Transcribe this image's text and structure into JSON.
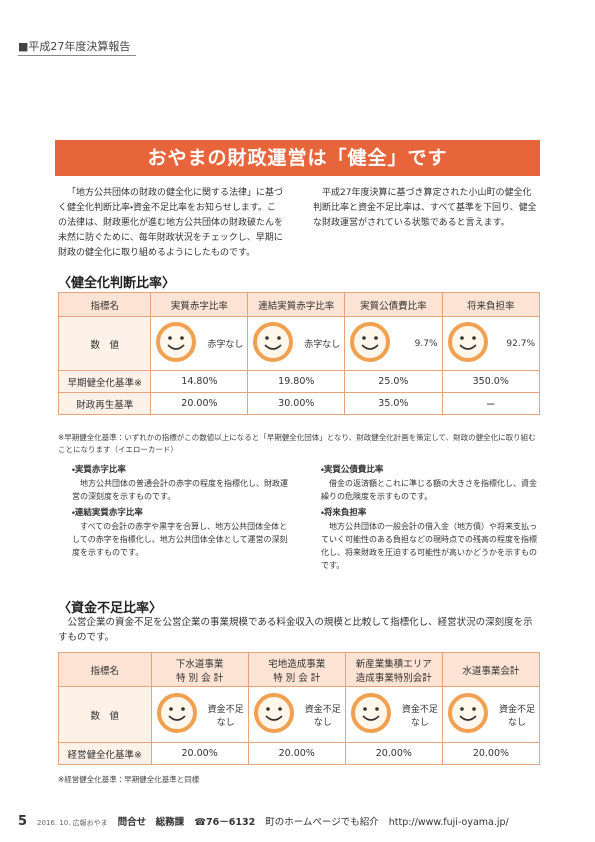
{
  "header": {
    "tag": "■平成27年度決算報告"
  },
  "title": "おやまの財政運営は「健全」です",
  "intro": [
    "「地方公共団体の財政の健全化に関する法律」に基づく健全化判断比率・資金不足比率をお知らせします。この法律は、財政悪化が進む地方公共団体の財政破たんを未然に防ぐために、毎年財政状況をチェックし、早期に財政の健全化に取り組めるようにしたものです。",
    "平成27年度決算に基づき算定された小山町の健全化判断比率と資金不足比率は、すべて基準を下回り、健全な財政運営がされている状態であると言えます。"
  ],
  "section1": {
    "heading": "〈健全化判断比率〉",
    "table": {
      "header": [
        "指標名",
        "実質赤字比率",
        "連結実質赤字比率",
        "実質公債費比率",
        "将来負担率"
      ],
      "rows": [
        [
          "数　値",
          "赤字なし",
          "赤字なし",
          "9.7%",
          "92.7%"
        ],
        [
          "早期健全化基準※",
          "14.80%",
          "19.80%",
          "25.0%",
          "350.0%"
        ],
        [
          "財政再生基準",
          "20.00%",
          "30.00%",
          "35.0%",
          "ー"
        ]
      ]
    },
    "note": "※早期健全化基準：いずれかの指標がこの数値以上になると「早期健全化団体」となり、財政健全化計画を策定して、財政の健全化に取り組むことになります（イエローカード）",
    "definitions": [
      {
        "term": "・実質赤字比率",
        "text": "地方公共団体の普通会計の赤字の程度を指標化し、財政運営の深刻度を示すものです。"
      },
      {
        "term": "・連結実質赤字比率",
        "text": "すべての会計の赤字や黒字を合算し、地方公共団体全体としての赤字を指標化し、地方公共団体全体として運営の深刻度を示すものです。"
      },
      {
        "term": "・実質公債費比率",
        "text": "借金の返済額とこれに準じる額の大きさを指標化し、資金繰りの危険度を示すものです。"
      },
      {
        "term": "・将来負担率",
        "text": "地方公共団体の一般会計の借入金（地方債）や将来支払っていく可能性のある負担などの現時点での残高の程度を指標化し、将来財政を圧迫する可能性が高いかどうかを示すものです。"
      }
    ]
  },
  "section2": {
    "heading": "〈資金不足比率〉",
    "description": "公営企業の資金不足を公営企業の事業規模である料金収入の規模と比較して指標化し、経営状況の深刻度を示すものです。",
    "table": {
      "header": [
        "指標名",
        "下水道事業\n特 別 会 計",
        "宅地造成事業\n特 別 会 計",
        "新産業集積エリア\n造成事業特別会計",
        "水道事業会計"
      ],
      "rows": [
        [
          "数　値",
          "資金不足\nなし",
          "資金不足\nなし",
          "資金不足\nなし",
          "資金不足\nなし"
        ],
        [
          "経営健全化基準※",
          "20.00%",
          "20.00%",
          "20.00%",
          "20.00%"
        ]
      ]
    },
    "note": "※経営健全化基準：早期健全化基準と同様"
  },
  "footer": {
    "page": "5",
    "issue": "2016. 10.  広報おやま",
    "contact": "問合せ　総務課",
    "phone": "☎76－6132",
    "web_note": "町のホームページでも紹介",
    "url": "http://www.fuji-oyama.jp/"
  }
}
